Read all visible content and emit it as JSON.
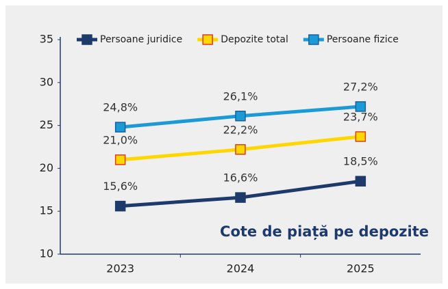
{
  "chart_data": {
    "type": "line",
    "annotation": "Cote de piață pe depozite",
    "categories": [
      "2023",
      "2024",
      "2025"
    ],
    "series": [
      {
        "name": "Persoane juridice",
        "color": "#1d3a6b",
        "marker_fill": "#1d3a6b",
        "marker_edge": "#1d3a6b",
        "values": [
          15.6,
          16.6,
          18.5
        ],
        "value_labels": [
          "15,6%",
          "16,6%",
          "18,5%"
        ]
      },
      {
        "name": "Depozite total",
        "color": "#ffd700",
        "marker_fill": "#ffd700",
        "marker_edge": "#e03a1e",
        "values": [
          21.0,
          22.2,
          23.7
        ],
        "value_labels": [
          "21,0%",
          "22,2%",
          "23,7%"
        ]
      },
      {
        "name": "Persoane fizice",
        "color": "#1b9ad6",
        "marker_fill": "#1b9ad6",
        "marker_edge": "#1a5f9a",
        "values": [
          24.8,
          26.1,
          27.2
        ],
        "value_labels": [
          "24,8%",
          "26,1%",
          "27,2%"
        ]
      }
    ],
    "ylim": [
      10,
      35
    ],
    "yticks": [
      10,
      15,
      20,
      25,
      30,
      35
    ],
    "grid": false,
    "legend": "top"
  }
}
